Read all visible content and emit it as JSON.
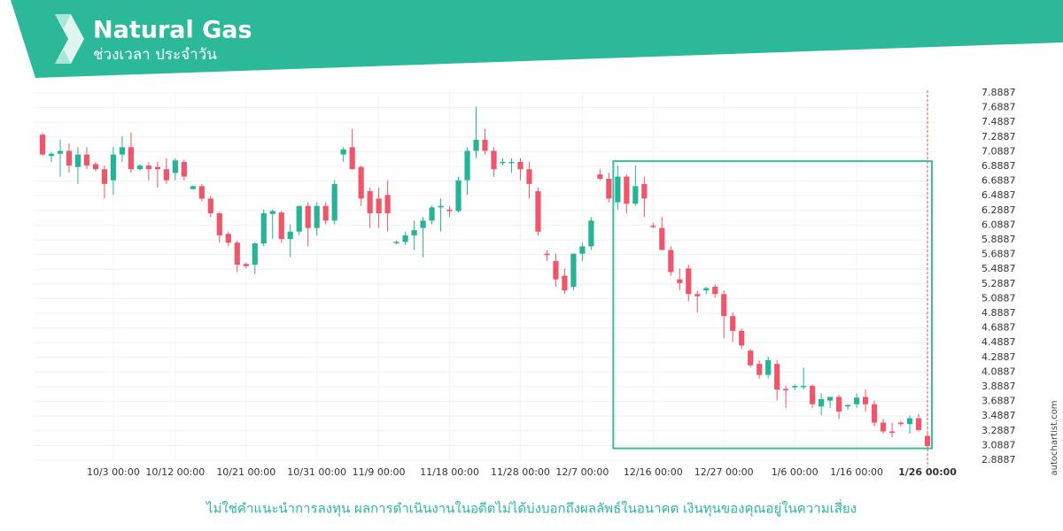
{
  "header": {
    "title": "Natural Gas",
    "subtitle": "ช่วงเวลา ประจำวัน"
  },
  "watermark": "autochartist.com",
  "footer": "ไม่ใช่คำแนะนำการลงทุน ผลการดำเนินงานในอดีตไม่ได้บ่งบอกถึงผลลัพธ์ในอนาคต เงินทุนของคุณอยู่ในความเสี่ยง",
  "chart_data": {
    "type": "candlestick",
    "up_color": "#26b496",
    "down_color": "#f0566a",
    "box_color": "#3cbf9e",
    "categories": [
      null,
      null,
      null,
      null,
      null,
      null,
      null,
      null,
      "10/3 00:00",
      null,
      null,
      null,
      null,
      null,
      null,
      "10/12 00:00",
      null,
      null,
      null,
      null,
      null,
      null,
      null,
      "10/21 00:00",
      null,
      null,
      null,
      null,
      null,
      null,
      null,
      "10/31 00:00",
      null,
      null,
      null,
      null,
      null,
      null,
      "11/9 00:00",
      null,
      null,
      null,
      null,
      null,
      null,
      null,
      "11/18 00:00",
      null,
      null,
      null,
      null,
      null,
      null,
      null,
      "11/28 00:00",
      null,
      null,
      null,
      null,
      null,
      null,
      "12/7 00:00",
      null,
      null,
      null,
      null,
      null,
      null,
      null,
      "12/16 00:00",
      null,
      null,
      null,
      null,
      null,
      null,
      null,
      "12/27 00:00",
      null,
      null,
      null,
      null,
      null,
      null,
      null,
      "1/6 00:00",
      null,
      null,
      null,
      null,
      null,
      null,
      "1/16 00:00",
      null,
      null,
      null,
      null,
      null,
      null,
      null,
      "1/26 00:00"
    ],
    "open": [
      7.32,
      7.03,
      7.06,
      7.1,
      6.88,
      7.05,
      6.92,
      6.85,
      6.7,
      7.05,
      7.15,
      6.85,
      6.9,
      6.88,
      6.85,
      6.8,
      6.95,
      6.58,
      6.62,
      6.45,
      6.25,
      5.97,
      5.85,
      5.56,
      5.55,
      5.84,
      6.24,
      6.26,
      5.9,
      6.0,
      6.35,
      6.05,
      6.35,
      6.15,
      7.05,
      7.15,
      6.88,
      6.55,
      6.45,
      6.5,
      5.85,
      5.86,
      5.95,
      6.05,
      6.15,
      6.33,
      6.3,
      6.28,
      6.7,
      7.1,
      7.25,
      7.1,
      6.95,
      6.95,
      6.95,
      6.85,
      6.55,
      5.7,
      5.6,
      5.4,
      5.25,
      5.7,
      5.8,
      6.78,
      6.72,
      6.4,
      6.75,
      6.38,
      6.65,
      6.08,
      6.05,
      5.75,
      5.35,
      5.5,
      5.15,
      5.2,
      5.25,
      5.15,
      4.85,
      4.65,
      4.38,
      4.2,
      4.05,
      4.2,
      3.86,
      3.88,
      3.9,
      3.9,
      3.62,
      3.7,
      3.75,
      3.62,
      3.65,
      3.75,
      3.65,
      3.4,
      3.28,
      3.4,
      3.38,
      3.46,
      3.22
    ],
    "high": [
      7.35,
      7.08,
      7.25,
      7.2,
      7.15,
      7.15,
      6.95,
      6.9,
      7.15,
      7.3,
      7.35,
      6.92,
      6.95,
      6.95,
      7.0,
      7.0,
      6.98,
      6.63,
      6.65,
      6.48,
      6.27,
      6.0,
      5.88,
      5.58,
      5.86,
      6.3,
      6.3,
      6.28,
      6.1,
      6.35,
      6.4,
      6.4,
      6.4,
      6.7,
      7.15,
      7.4,
      6.9,
      6.6,
      6.6,
      6.7,
      5.88,
      6.0,
      6.15,
      6.2,
      6.35,
      6.45,
      6.35,
      6.75,
      7.15,
      7.7,
      7.4,
      7.15,
      7.0,
      7.0,
      7.0,
      6.95,
      6.6,
      5.75,
      5.7,
      5.5,
      5.7,
      5.85,
      6.2,
      6.85,
      6.8,
      6.9,
      6.78,
      6.9,
      6.75,
      6.12,
      6.2,
      5.8,
      5.5,
      5.55,
      5.2,
      5.25,
      5.28,
      5.2,
      4.9,
      4.68,
      4.4,
      4.25,
      4.3,
      4.25,
      3.9,
      3.92,
      4.15,
      3.92,
      3.8,
      3.75,
      3.78,
      3.65,
      3.8,
      3.85,
      3.7,
      3.45,
      3.4,
      3.42,
      3.5,
      3.52,
      3.25
    ],
    "low": [
      7.03,
      6.95,
      6.75,
      6.8,
      6.65,
      6.85,
      6.82,
      6.45,
      6.5,
      6.95,
      6.8,
      6.83,
      6.7,
      6.6,
      6.65,
      6.7,
      6.7,
      6.57,
      6.42,
      6.2,
      5.85,
      5.8,
      5.45,
      5.5,
      5.42,
      5.8,
      5.9,
      5.85,
      5.65,
      5.95,
      5.8,
      5.95,
      6.1,
      6.1,
      6.95,
      6.85,
      6.35,
      6.05,
      6.05,
      6.0,
      5.83,
      5.82,
      5.75,
      5.65,
      6.1,
      6.0,
      6.2,
      6.26,
      6.5,
      7.0,
      7.05,
      6.75,
      6.9,
      6.8,
      6.7,
      6.45,
      5.95,
      5.6,
      5.25,
      5.15,
      5.2,
      5.6,
      5.75,
      6.7,
      6.4,
      6.3,
      6.25,
      6.35,
      6.2,
      6.05,
      5.75,
      5.4,
      5.2,
      5.05,
      4.9,
      5.15,
      5.1,
      4.55,
      4.5,
      4.4,
      4.15,
      4.0,
      4.0,
      3.7,
      3.6,
      3.84,
      3.85,
      3.6,
      3.5,
      3.6,
      3.45,
      3.58,
      3.6,
      3.55,
      3.35,
      3.25,
      3.2,
      3.35,
      3.25,
      3.28,
      3.05
    ],
    "close": [
      7.05,
      7.06,
      7.1,
      6.9,
      7.05,
      6.9,
      6.85,
      6.65,
      7.05,
      7.15,
      6.85,
      6.9,
      6.85,
      6.85,
      6.7,
      6.97,
      6.75,
      6.62,
      6.45,
      6.25,
      5.95,
      5.85,
      5.55,
      5.53,
      5.84,
      6.25,
      6.28,
      5.9,
      6.0,
      6.35,
      6.05,
      6.35,
      6.15,
      6.65,
      7.12,
      6.85,
      6.45,
      6.25,
      6.25,
      6.25,
      5.86,
      5.95,
      6.02,
      6.15,
      6.33,
      6.35,
      6.28,
      6.7,
      7.1,
      7.25,
      7.1,
      6.85,
      6.95,
      6.95,
      6.85,
      6.65,
      6.0,
      5.68,
      5.35,
      5.2,
      5.7,
      5.8,
      6.15,
      6.72,
      6.45,
      6.75,
      6.38,
      6.62,
      6.45,
      6.07,
      5.75,
      5.45,
      5.3,
      5.15,
      5.12,
      5.23,
      5.15,
      4.85,
      4.65,
      4.45,
      4.18,
      4.05,
      4.25,
      3.85,
      3.84,
      3.9,
      3.9,
      3.65,
      3.72,
      3.75,
      3.55,
      3.64,
      3.74,
      3.65,
      3.4,
      3.28,
      3.27,
      3.38,
      3.46,
      3.3,
      3.08
    ],
    "pattern": {
      "start_index": 65,
      "end_index": 100,
      "low": 3.05,
      "high": 6.96
    },
    "ylim": [
      2.8887,
      7.8887
    ],
    "yticks": [
      2.8887,
      3.0887,
      3.2887,
      3.4887,
      3.6887,
      3.8887,
      4.0887,
      4.2887,
      4.4887,
      4.6887,
      4.8887,
      5.0887,
      5.2887,
      5.4887,
      5.6887,
      5.8887,
      6.0887,
      6.2887,
      6.4887,
      6.6887,
      6.8887,
      7.0887,
      7.2887,
      7.4887,
      7.6887,
      7.8887
    ],
    "grid": true
  }
}
